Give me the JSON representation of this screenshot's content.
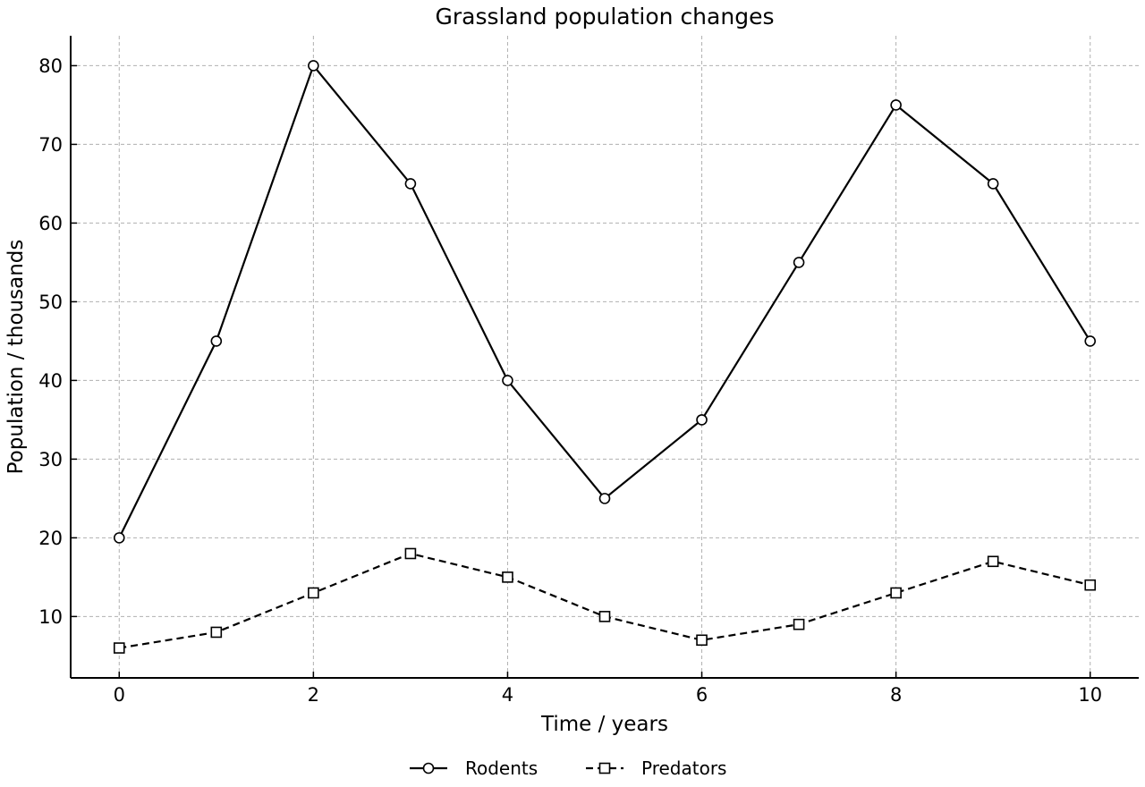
{
  "chart_data": {
    "type": "line",
    "title": "Grassland population changes",
    "xlabel": "Time / years",
    "ylabel": "Population / thousands",
    "x": [
      0,
      1,
      2,
      3,
      4,
      5,
      6,
      7,
      8,
      9,
      10
    ],
    "xlim": [
      -0.5,
      10.5
    ],
    "ylim": [
      2.2,
      83.8
    ],
    "xticks": [
      "0",
      "2",
      "4",
      "6",
      "8",
      "10"
    ],
    "yticks": [
      "10",
      "20",
      "30",
      "40",
      "50",
      "60",
      "70",
      "80"
    ],
    "grid": true,
    "legend_position": "bottom-center",
    "series": [
      {
        "name": "Rodents",
        "values": [
          20,
          45,
          80,
          65,
          40,
          25,
          35,
          55,
          75,
          65,
          45
        ],
        "line_style": "solid",
        "marker": "circle",
        "color": "#000000"
      },
      {
        "name": "Predators",
        "values": [
          6,
          8,
          13,
          18,
          15,
          10,
          7,
          9,
          13,
          17,
          14
        ],
        "line_style": "dashed",
        "marker": "square",
        "color": "#000000"
      }
    ]
  }
}
